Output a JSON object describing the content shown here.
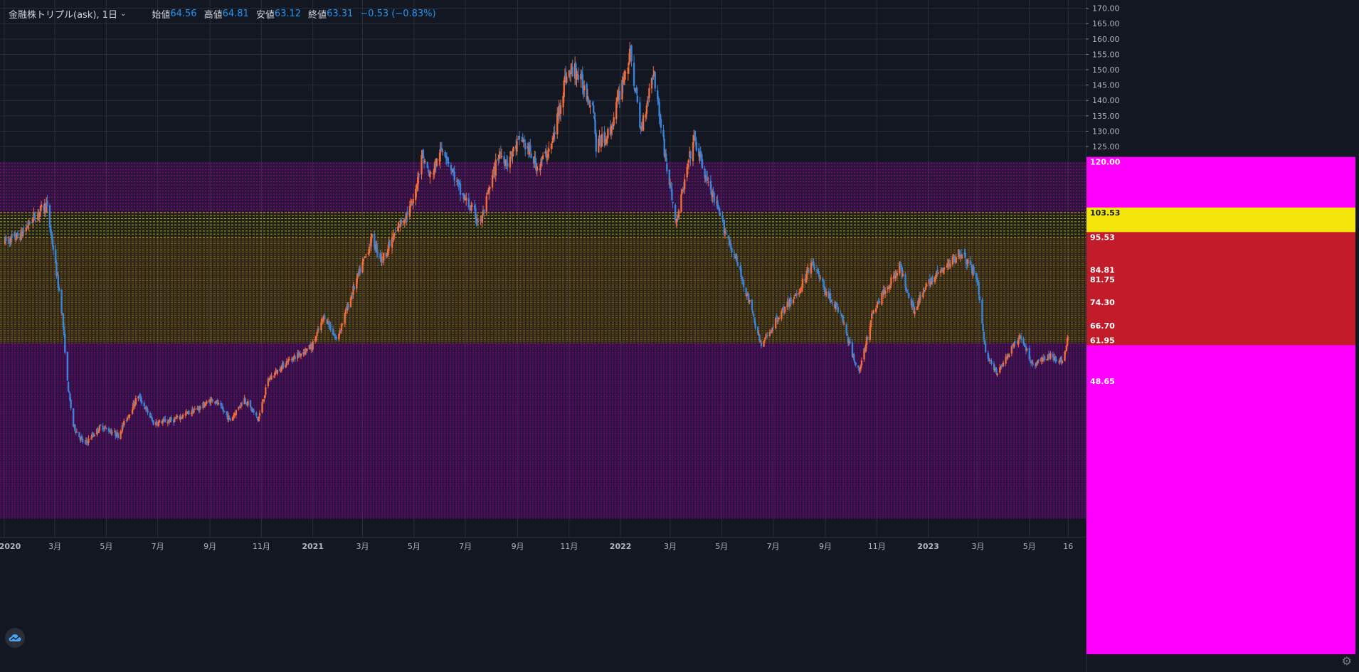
{
  "legend": {
    "symbol": "金融株トリプル(ask), 1日",
    "caret": "⌄",
    "open_label": "始値",
    "open": "64.56",
    "high_label": "高値",
    "high": "64.81",
    "low_label": "安値",
    "low": "63.12",
    "close_label": "終値",
    "close": "63.31",
    "change": "−0.53 (−0.83%)"
  },
  "colors": {
    "background": "#131722",
    "up": "#ef6c3b",
    "down": "#3a82d6",
    "magenta": "#ff00ff",
    "yellow": "#f5e60a",
    "red_band": "#c21c2b",
    "grid": "#2a2e39"
  },
  "icons": {
    "logo": "tradingview-cloud-icon",
    "settings": "gear-icon"
  },
  "chart_data": {
    "type": "candlestick",
    "ylim": [
      0,
      172
    ],
    "y_ticks": [
      "170.00",
      "165.00",
      "160.00",
      "155.00",
      "150.00",
      "145.00",
      "140.00",
      "135.00",
      "130.00",
      "125.00"
    ],
    "x_ticks": [
      "2020",
      "3月",
      "5月",
      "7月",
      "9月",
      "11月",
      "2021",
      "3月",
      "5月",
      "7月",
      "9月",
      "11月",
      "2022",
      "3月",
      "5月",
      "7月",
      "9月",
      "11月",
      "2023",
      "3月",
      "5月",
      "16"
    ],
    "price_badges": [
      {
        "value": 120.0,
        "label": "120.00",
        "color": "magenta"
      },
      {
        "value": 103.53,
        "label": "103.53",
        "color": "yellow"
      },
      {
        "value": 95.53,
        "label": "95.53",
        "color": "red_band"
      },
      {
        "value": 84.81,
        "label": "84.81",
        "color": "red_band"
      },
      {
        "value": 81.75,
        "label": "81.75",
        "color": "red_band"
      },
      {
        "value": 74.3,
        "label": "74.30",
        "color": "red_band"
      },
      {
        "value": 66.7,
        "label": "66.70",
        "color": "red_band"
      },
      {
        "value": 61.95,
        "label": "61.95",
        "color": "red_band"
      },
      {
        "value": 48.65,
        "label": "48.65",
        "color": "magenta"
      }
    ],
    "zones": [
      {
        "name": "magenta-upper",
        "from": 103.5,
        "to": 120.0,
        "color": "magenta"
      },
      {
        "name": "yellow-band",
        "from": 95.5,
        "to": 103.5,
        "color": "yellow"
      },
      {
        "name": "gold-band",
        "from": 61.0,
        "to": 95.5,
        "color": "yellow"
      },
      {
        "name": "magenta-lower",
        "from": 4.0,
        "to": 61.0,
        "color": "magenta"
      }
    ],
    "trend_points": [
      [
        "2020-01-02",
        94
      ],
      [
        "2020-01-20",
        96
      ],
      [
        "2020-02-05",
        102
      ],
      [
        "2020-02-20",
        106
      ],
      [
        "2020-02-28",
        92
      ],
      [
        "2020-03-10",
        70
      ],
      [
        "2020-03-16",
        48
      ],
      [
        "2020-03-23",
        34
      ],
      [
        "2020-04-05",
        28
      ],
      [
        "2020-04-25",
        34
      ],
      [
        "2020-05-15",
        31
      ],
      [
        "2020-06-08",
        44
      ],
      [
        "2020-06-26",
        35
      ],
      [
        "2020-07-20",
        36
      ],
      [
        "2020-08-20",
        40
      ],
      [
        "2020-09-05",
        43
      ],
      [
        "2020-09-25",
        36
      ],
      [
        "2020-10-12",
        43
      ],
      [
        "2020-10-28",
        36
      ],
      [
        "2020-11-09",
        49
      ],
      [
        "2020-12-01",
        55
      ],
      [
        "2020-12-31",
        60
      ],
      [
        "2021-01-15",
        70
      ],
      [
        "2021-01-29",
        62
      ],
      [
        "2021-02-20",
        80
      ],
      [
        "2021-03-12",
        95
      ],
      [
        "2021-03-24",
        88
      ],
      [
        "2021-04-15",
        100
      ],
      [
        "2021-05-01",
        107
      ],
      [
        "2021-05-10",
        123
      ],
      [
        "2021-05-20",
        115
      ],
      [
        "2021-06-05",
        125
      ],
      [
        "2021-06-25",
        110
      ],
      [
        "2021-07-19",
        100
      ],
      [
        "2021-08-10",
        123
      ],
      [
        "2021-08-20",
        120
      ],
      [
        "2021-09-05",
        128
      ],
      [
        "2021-09-25",
        118
      ],
      [
        "2021-10-12",
        126
      ],
      [
        "2021-10-28",
        148
      ],
      [
        "2021-11-08",
        150
      ],
      [
        "2021-11-30",
        138
      ],
      [
        "2021-12-03",
        125
      ],
      [
        "2021-12-20",
        130
      ],
      [
        "2022-01-05",
        148
      ],
      [
        "2022-01-13",
        155
      ],
      [
        "2022-01-25",
        130
      ],
      [
        "2022-02-09",
        150
      ],
      [
        "2022-02-25",
        118
      ],
      [
        "2022-03-08",
        100
      ],
      [
        "2022-03-29",
        128
      ],
      [
        "2022-04-12",
        115
      ],
      [
        "2022-05-02",
        100
      ],
      [
        "2022-05-18",
        88
      ],
      [
        "2022-06-01",
        76
      ],
      [
        "2022-06-17",
        60
      ],
      [
        "2022-07-08",
        70
      ],
      [
        "2022-08-01",
        78
      ],
      [
        "2022-08-16",
        88
      ],
      [
        "2022-09-01",
        78
      ],
      [
        "2022-09-20",
        70
      ],
      [
        "2022-10-03",
        57
      ],
      [
        "2022-10-12",
        52
      ],
      [
        "2022-10-28",
        72
      ],
      [
        "2022-11-15",
        80
      ],
      [
        "2022-11-28",
        86
      ],
      [
        "2022-12-15",
        72
      ],
      [
        "2023-01-05",
        82
      ],
      [
        "2023-01-20",
        85
      ],
      [
        "2023-02-08",
        91
      ],
      [
        "2023-02-28",
        82
      ],
      [
        "2023-03-10",
        58
      ],
      [
        "2023-03-23",
        51
      ],
      [
        "2023-04-10",
        59
      ],
      [
        "2023-04-20",
        63
      ],
      [
        "2023-05-05",
        54
      ],
      [
        "2023-05-25",
        57
      ],
      [
        "2023-06-10",
        55
      ],
      [
        "2023-06-16",
        63
      ]
    ]
  }
}
